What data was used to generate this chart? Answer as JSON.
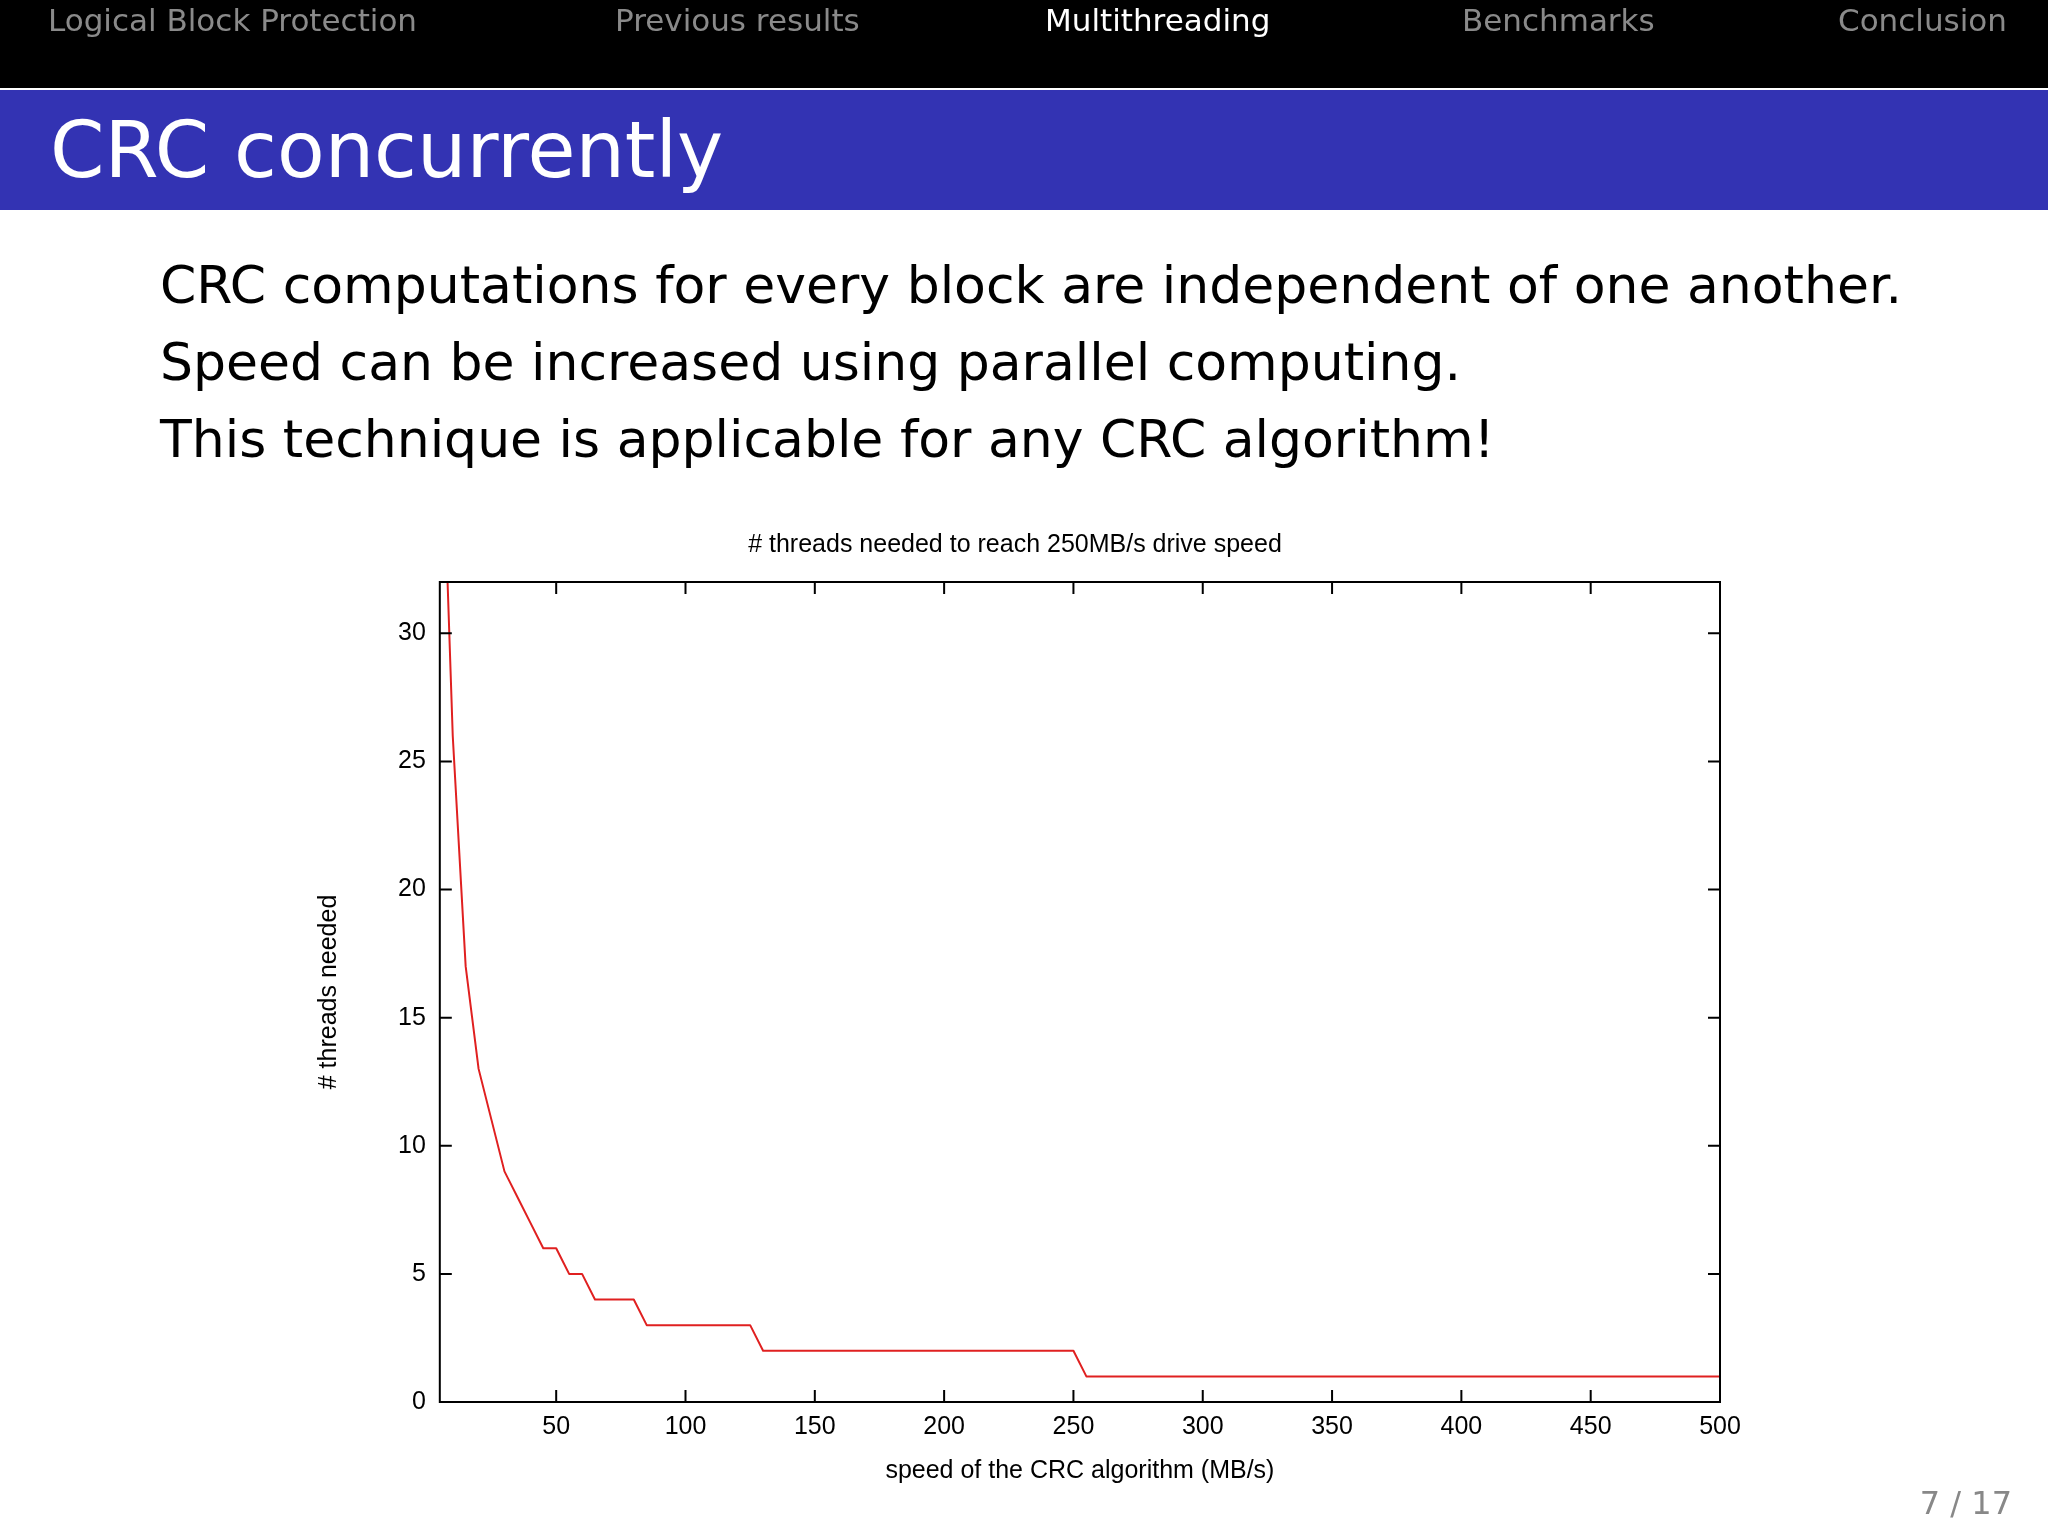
{
  "chart_data": {
    "type": "line",
    "title": "# threads needed to reach 250MB/s drive speed",
    "xlabel": "speed of the CRC algorithm (MB/s)",
    "ylabel": "# threads needed",
    "x": [
      8,
      10,
      15,
      20,
      25,
      30,
      35,
      40,
      45,
      50,
      55,
      60,
      65,
      70,
      75,
      80,
      85,
      90,
      95,
      100,
      105,
      110,
      115,
      120,
      125,
      130,
      135,
      140,
      145,
      150,
      155,
      160,
      165,
      170,
      175,
      180,
      185,
      190,
      195,
      200,
      205,
      210,
      215,
      220,
      225,
      230,
      235,
      240,
      245,
      250,
      255,
      260,
      265,
      270,
      275,
      280,
      285,
      290,
      295,
      300,
      305,
      310,
      315,
      320,
      325,
      330,
      335,
      340,
      345,
      350,
      355,
      360,
      365,
      370,
      375,
      380,
      385,
      390,
      395,
      400,
      405,
      410,
      415,
      420,
      425,
      430,
      435,
      440,
      445,
      450,
      455,
      460,
      465,
      470,
      475,
      480,
      485,
      490,
      495,
      500
    ],
    "series": [
      {
        "color": "#e02020",
        "values": [
          32,
          26,
          17,
          13,
          11,
          9,
          8,
          7,
          6,
          6,
          5,
          5,
          4,
          4,
          4,
          4,
          3,
          3,
          3,
          3,
          3,
          3,
          3,
          3,
          3,
          2,
          2,
          2,
          2,
          2,
          2,
          2,
          2,
          2,
          2,
          2,
          2,
          2,
          2,
          2,
          2,
          2,
          2,
          2,
          2,
          2,
          2,
          2,
          2,
          2,
          1,
          1,
          1,
          1,
          1,
          1,
          1,
          1,
          1,
          1,
          1,
          1,
          1,
          1,
          1,
          1,
          1,
          1,
          1,
          1,
          1,
          1,
          1,
          1,
          1,
          1,
          1,
          1,
          1,
          1,
          1,
          1,
          1,
          1,
          1,
          1,
          1,
          1,
          1,
          1,
          1,
          1,
          1,
          1,
          1,
          1,
          1,
          1,
          1,
          1
        ]
      }
    ],
    "xlim": [
      5,
      500
    ],
    "ylim": [
      0,
      32
    ],
    "xticks": [
      50,
      100,
      150,
      200,
      250,
      300,
      350,
      400,
      450,
      500
    ],
    "yticks": [
      0,
      5,
      10,
      15,
      20,
      25,
      30
    ],
    "grid": false,
    "legend": false,
    "marker": "none",
    "line_style": "solid",
    "annotations": [
      "Logical Block Protection",
      "Previous results",
      "Multithreading",
      "Benchmarks",
      "Conclusion",
      "CRC concurrently",
      "CRC computations for every block are independent of one another.",
      "Speed can be increased using parallel computing.",
      "This technique is applicable for any CRC algorithm!",
      "7 / 17"
    ]
  }
}
